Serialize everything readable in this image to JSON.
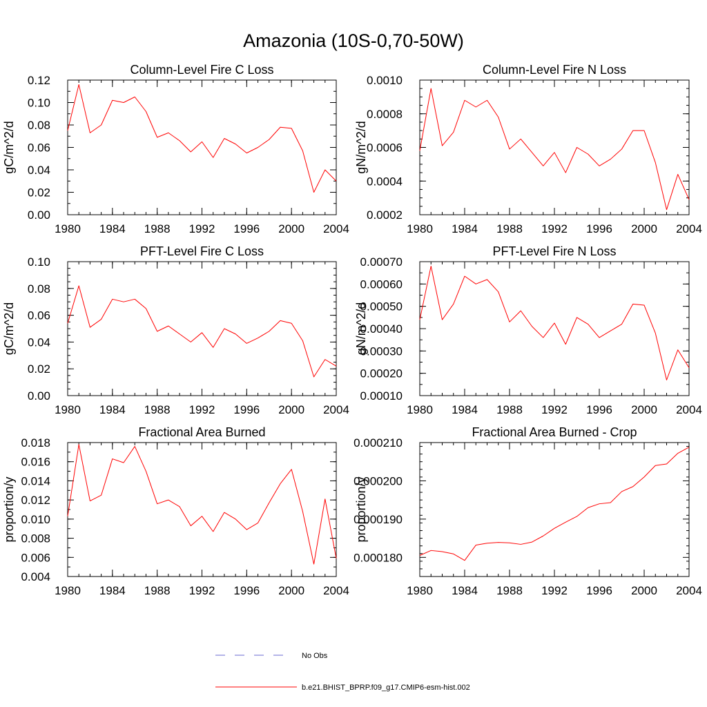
{
  "figure": {
    "title": "Amazonia (10S-0,70-50W)"
  },
  "legend": {
    "obs_label": "No Obs",
    "model_label": "b.e21.BHIST_BPRP.f09_g17.CMIP6-esm-hist.002",
    "obs_color": "#6a6ad0",
    "model_color": "#ff0000"
  },
  "chart_data": [
    {
      "type": "line",
      "title": "Column-Level Fire C Loss",
      "ylabel": "gC/m^2/d",
      "xlabel": "",
      "xlim": [
        1980,
        2004
      ],
      "ylim": [
        0.0,
        0.12
      ],
      "x_ticks": [
        1980,
        1984,
        1988,
        1992,
        1996,
        2000,
        2004
      ],
      "x_tick_labels": [
        "1980",
        "1984",
        "1988",
        "1992",
        "1996",
        "2000",
        "2004"
      ],
      "y_ticks": [
        0.0,
        0.02,
        0.04,
        0.06,
        0.08,
        0.1,
        0.12
      ],
      "y_tick_labels": [
        "0.00",
        "0.02",
        "0.04",
        "0.06",
        "0.08",
        "0.10",
        "0.12"
      ],
      "y_minor_step": 0.01,
      "x": [
        1980,
        1981,
        1982,
        1983,
        1984,
        1985,
        1986,
        1987,
        1988,
        1989,
        1990,
        1991,
        1992,
        1993,
        1994,
        1995,
        1996,
        1997,
        1998,
        1999,
        2000,
        2001,
        2002,
        2003,
        2004
      ],
      "series": [
        {
          "name": "b.e21.BHIST_BPRP.f09_g17.CMIP6-esm-hist.002",
          "color": "#ff0000",
          "values": [
            0.075,
            0.116,
            0.073,
            0.08,
            0.102,
            0.1,
            0.105,
            0.092,
            0.069,
            0.073,
            0.066,
            0.056,
            0.065,
            0.051,
            0.068,
            0.063,
            0.055,
            0.06,
            0.067,
            0.078,
            0.077,
            0.057,
            0.02,
            0.04,
            0.03
          ]
        }
      ]
    },
    {
      "type": "line",
      "title": "Column-Level Fire N Loss",
      "ylabel": "gN/m^2/d",
      "xlabel": "",
      "xlim": [
        1980,
        2004
      ],
      "ylim": [
        0.0002,
        0.001
      ],
      "x_ticks": [
        1980,
        1984,
        1988,
        1992,
        1996,
        2000,
        2004
      ],
      "x_tick_labels": [
        "1980",
        "1984",
        "1988",
        "1992",
        "1996",
        "2000",
        "2004"
      ],
      "y_ticks": [
        0.0002,
        0.0004,
        0.0006,
        0.0008,
        0.001
      ],
      "y_tick_labels": [
        "0.0002",
        "0.0004",
        "0.0006",
        "0.0008",
        "0.0010"
      ],
      "y_minor_step": 5e-05,
      "x": [
        1980,
        1981,
        1982,
        1983,
        1984,
        1985,
        1986,
        1987,
        1988,
        1989,
        1990,
        1991,
        1992,
        1993,
        1994,
        1995,
        1996,
        1997,
        1998,
        1999,
        2000,
        2001,
        2002,
        2003,
        2004
      ],
      "series": [
        {
          "name": "b.e21.BHIST_BPRP.f09_g17.CMIP6-esm-hist.002",
          "color": "#ff0000",
          "values": [
            0.00058,
            0.00095,
            0.00061,
            0.00069,
            0.00088,
            0.00084,
            0.00088,
            0.00078,
            0.00059,
            0.00065,
            0.00057,
            0.00049,
            0.00057,
            0.00045,
            0.0006,
            0.00056,
            0.00049,
            0.00053,
            0.00059,
            0.0007,
            0.0007,
            0.00051,
            0.00023,
            0.00044,
            0.00029
          ]
        }
      ]
    },
    {
      "type": "line",
      "title": "PFT-Level Fire C Loss",
      "ylabel": "gC/m^2/d",
      "xlabel": "",
      "xlim": [
        1980,
        2004
      ],
      "ylim": [
        0.0,
        0.1
      ],
      "x_ticks": [
        1980,
        1984,
        1988,
        1992,
        1996,
        2000,
        2004
      ],
      "x_tick_labels": [
        "1980",
        "1984",
        "1988",
        "1992",
        "1996",
        "2000",
        "2004"
      ],
      "y_ticks": [
        0.0,
        0.02,
        0.04,
        0.06,
        0.08,
        0.1
      ],
      "y_tick_labels": [
        "0.00",
        "0.02",
        "0.04",
        "0.06",
        "0.08",
        "0.10"
      ],
      "y_minor_step": 0.005,
      "x": [
        1980,
        1981,
        1982,
        1983,
        1984,
        1985,
        1986,
        1987,
        1988,
        1989,
        1990,
        1991,
        1992,
        1993,
        1994,
        1995,
        1996,
        1997,
        1998,
        1999,
        2000,
        2001,
        2002,
        2003,
        2004
      ],
      "series": [
        {
          "name": "b.e21.BHIST_BPRP.f09_g17.CMIP6-esm-hist.002",
          "color": "#ff0000",
          "values": [
            0.054,
            0.082,
            0.051,
            0.057,
            0.072,
            0.07,
            0.072,
            0.065,
            0.048,
            0.052,
            0.046,
            0.04,
            0.047,
            0.036,
            0.05,
            0.046,
            0.039,
            0.043,
            0.048,
            0.056,
            0.054,
            0.041,
            0.014,
            0.027,
            0.022
          ]
        }
      ]
    },
    {
      "type": "line",
      "title": "PFT-Level Fire N Loss",
      "ylabel": "gN/m^2/d",
      "xlabel": "",
      "xlim": [
        1980,
        2004
      ],
      "ylim": [
        0.0001,
        0.0007
      ],
      "x_ticks": [
        1980,
        1984,
        1988,
        1992,
        1996,
        2000,
        2004
      ],
      "x_tick_labels": [
        "1980",
        "1984",
        "1988",
        "1992",
        "1996",
        "2000",
        "2004"
      ],
      "y_ticks": [
        0.0001,
        0.0002,
        0.0003,
        0.0004,
        0.0005,
        0.0006,
        0.0007
      ],
      "y_tick_labels": [
        "0.00010",
        "0.00020",
        "0.00030",
        "0.00040",
        "0.00050",
        "0.00060",
        "0.00070"
      ],
      "y_minor_step": 5e-05,
      "x": [
        1980,
        1981,
        1982,
        1983,
        1984,
        1985,
        1986,
        1987,
        1988,
        1989,
        1990,
        1991,
        1992,
        1993,
        1994,
        1995,
        1996,
        1997,
        1998,
        1999,
        2000,
        2001,
        2002,
        2003,
        2004
      ],
      "series": [
        {
          "name": "b.e21.BHIST_BPRP.f09_g17.CMIP6-esm-hist.002",
          "color": "#ff0000",
          "values": [
            0.00044,
            0.00068,
            0.00044,
            0.00051,
            0.000635,
            0.0006,
            0.00062,
            0.000565,
            0.00043,
            0.00048,
            0.00041,
            0.00036,
            0.000425,
            0.00033,
            0.00045,
            0.00042,
            0.00036,
            0.00039,
            0.00042,
            0.00051,
            0.000505,
            0.00038,
            0.00017,
            0.000305,
            0.000225
          ]
        }
      ]
    },
    {
      "type": "line",
      "title": "Fractional Area Burned",
      "ylabel": "proportion/y",
      "xlabel": "",
      "xlim": [
        1980,
        2004
      ],
      "ylim": [
        0.004,
        0.018
      ],
      "x_ticks": [
        1980,
        1984,
        1988,
        1992,
        1996,
        2000,
        2004
      ],
      "x_tick_labels": [
        "1980",
        "1984",
        "1988",
        "1992",
        "1996",
        "2000",
        "2004"
      ],
      "y_ticks": [
        0.004,
        0.006,
        0.008,
        0.01,
        0.012,
        0.014,
        0.016,
        0.018
      ],
      "y_tick_labels": [
        "0.004",
        "0.006",
        "0.008",
        "0.010",
        "0.012",
        "0.014",
        "0.016",
        "0.018"
      ],
      "y_minor_step": 0.001,
      "x": [
        1980,
        1981,
        1982,
        1983,
        1984,
        1985,
        1986,
        1987,
        1988,
        1989,
        1990,
        1991,
        1992,
        1993,
        1994,
        1995,
        1996,
        1997,
        1998,
        1999,
        2000,
        2001,
        2002,
        2003,
        2004
      ],
      "series": [
        {
          "name": "b.e21.BHIST_BPRP.f09_g17.CMIP6-esm-hist.002",
          "color": "#ff0000",
          "values": [
            0.0103,
            0.0178,
            0.0119,
            0.0125,
            0.0163,
            0.0159,
            0.0176,
            0.015,
            0.0116,
            0.012,
            0.0113,
            0.0093,
            0.0103,
            0.0087,
            0.0107,
            0.01,
            0.0089,
            0.0096,
            0.0117,
            0.0137,
            0.0152,
            0.0108,
            0.0053,
            0.0121,
            0.0059
          ]
        }
      ]
    },
    {
      "type": "line",
      "title": "Fractional Area Burned - Crop",
      "ylabel": "proportion/y",
      "xlabel": "",
      "xlim": [
        1980,
        2004
      ],
      "ylim": [
        0.000175,
        0.00021
      ],
      "x_ticks": [
        1980,
        1984,
        1988,
        1992,
        1996,
        2000,
        2004
      ],
      "x_tick_labels": [
        "1980",
        "1984",
        "1988",
        "1992",
        "1996",
        "2000",
        "2004"
      ],
      "y_ticks": [
        0.00018,
        0.00019,
        0.0002,
        0.00021
      ],
      "y_tick_labels": [
        "0.000180",
        "0.000190",
        "0.000200",
        "0.000210"
      ],
      "y_minor_step": 2e-06,
      "x": [
        1980,
        1981,
        1982,
        1983,
        1984,
        1985,
        1986,
        1987,
        1988,
        1989,
        1990,
        1991,
        1992,
        1993,
        1994,
        1995,
        1996,
        1997,
        1998,
        1999,
        2000,
        2001,
        2002,
        2003,
        2004
      ],
      "series": [
        {
          "name": "b.e21.BHIST_BPRP.f09_g17.CMIP6-esm-hist.002",
          "color": "#ff0000",
          "values": [
            0.0001805,
            0.0001818,
            0.0001815,
            0.0001809,
            0.0001792,
            0.0001832,
            0.0001837,
            0.0001839,
            0.0001838,
            0.0001834,
            0.000184,
            0.0001856,
            0.0001876,
            0.0001892,
            0.0001907,
            0.000193,
            0.000194,
            0.0001943,
            0.0001972,
            0.0001985,
            0.000201,
            0.000204,
            0.0002044,
            0.0002072,
            0.0002088
          ]
        }
      ]
    }
  ]
}
